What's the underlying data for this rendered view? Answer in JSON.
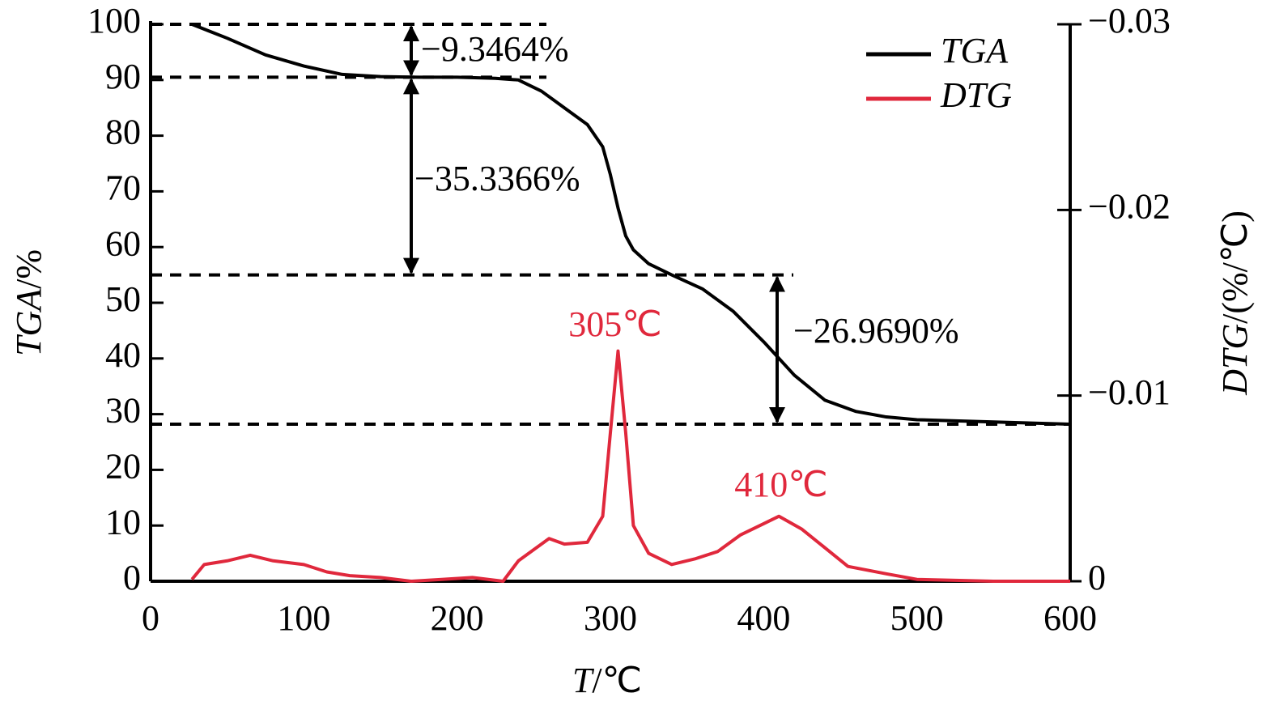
{
  "chart_data": {
    "type": "line",
    "xlabel": {
      "var": "T",
      "unit": "/℃"
    },
    "ylabel": {
      "var": "TGA",
      "unit": "/%"
    },
    "y2label": {
      "var": "DTG",
      "unit": "/(%/℃)"
    },
    "xlim": [
      0,
      600
    ],
    "xticks": [
      0,
      100,
      200,
      300,
      400,
      500,
      600
    ],
    "ylim": [
      0,
      100
    ],
    "yticks": [
      0,
      10,
      20,
      30,
      40,
      50,
      60,
      70,
      80,
      90,
      100
    ],
    "y2lim": [
      0,
      -0.03
    ],
    "y2ticks": [
      0,
      {
        "value": -0.01,
        "label": "−0.01"
      },
      {
        "value": -0.02,
        "label": "−0.02"
      },
      {
        "value": -0.03,
        "label": "−0.03"
      }
    ],
    "legend": "upper right",
    "series": [
      {
        "name": "TGA",
        "color": "#000000",
        "axis": "y",
        "x": [
          27,
          50,
          75,
          100,
          125,
          150,
          175,
          200,
          225,
          240,
          255,
          270,
          285,
          295,
          300,
          305,
          310,
          315,
          325,
          340,
          360,
          380,
          400,
          420,
          440,
          460,
          480,
          500,
          550,
          600
        ],
        "values": [
          100,
          97.5,
          94.5,
          92.5,
          91,
          90.6,
          90.5,
          90.5,
          90.3,
          90,
          88,
          85,
          82,
          78,
          73,
          67,
          62,
          59.5,
          57,
          55,
          52.5,
          48.5,
          43,
          37,
          32.5,
          30.5,
          29.5,
          29,
          28.6,
          28.2
        ]
      },
      {
        "name": "DTG",
        "color": "#e0283c",
        "axis": "y2",
        "x": [
          27,
          35,
          50,
          65,
          80,
          100,
          115,
          130,
          150,
          170,
          190,
          210,
          230,
          240,
          250,
          260,
          270,
          285,
          295,
          300,
          305,
          310,
          315,
          325,
          340,
          355,
          370,
          385,
          400,
          410,
          425,
          440,
          455,
          480,
          500,
          550,
          600
        ],
        "values": [
          -0.0001,
          -0.0009,
          -0.0011,
          -0.0014,
          -0.0011,
          -0.0009,
          -0.0005,
          -0.0003,
          -0.0002,
          0,
          -0.0001,
          -0.0002,
          0,
          -0.0011,
          -0.0017,
          -0.0023,
          -0.002,
          -0.0021,
          -0.0035,
          -0.008,
          -0.0124,
          -0.008,
          -0.003,
          -0.0015,
          -0.0009,
          -0.0012,
          -0.0016,
          -0.0025,
          -0.0031,
          -0.0035,
          -0.0028,
          -0.0018,
          -0.0008,
          -0.0004,
          -0.0001,
          0,
          0
        ]
      }
    ],
    "reference_lines": [
      100,
      90.5,
      55,
      28.2
    ],
    "mass_loss_labels": [
      "−9.3464%",
      "−35.3366%",
      "−26.9690%"
    ],
    "peak_labels": [
      "305℃",
      "410℃"
    ]
  }
}
